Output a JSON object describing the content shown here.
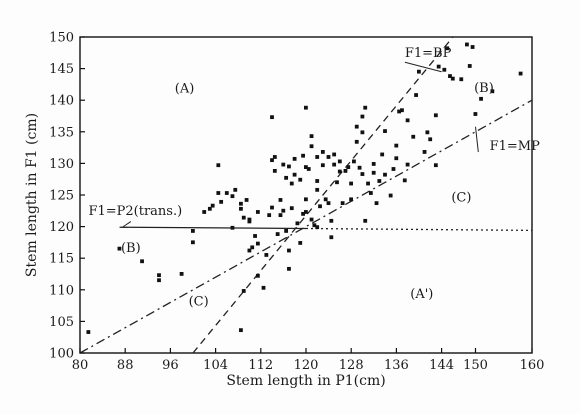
{
  "chart_data": {
    "type": "scatter",
    "title": "",
    "xlabel": "Stem length in P1(cm)",
    "ylabel": "Stem length in F1 (cm)",
    "xlim": [
      80,
      160
    ],
    "ylim": [
      100,
      150
    ],
    "x_ticks": [
      "80",
      "88",
      "96",
      "104",
      "112",
      "120",
      "128",
      "136",
      "144",
      "150",
      "160"
    ],
    "y_ticks": [
      "100",
      "105",
      "110",
      "115",
      "120",
      "125",
      "130",
      "135",
      "140",
      "145",
      "150"
    ],
    "grid": false,
    "legend": "none",
    "reference_lines": [
      {
        "name": "F1=BP",
        "style": "dashed",
        "points": [
          [
            100,
            100
          ],
          [
            146,
            150
          ]
        ]
      },
      {
        "name": "F1=MP",
        "style": "dashdot",
        "points": [
          [
            80,
            100
          ],
          [
            160,
            140
          ]
        ]
      },
      {
        "name": "F1=P2(trans.)",
        "style": "solid",
        "points": [
          [
            87,
            119.9
          ],
          [
            120,
            119.7
          ]
        ]
      },
      {
        "name": "P2 level (dotted)",
        "style": "dotted",
        "points": [
          [
            120,
            119.7
          ],
          [
            160,
            119.4
          ]
        ]
      }
    ],
    "annotations": [
      {
        "text": "(A)",
        "x": 98.5,
        "y": 141.2
      },
      {
        "text": "(B)",
        "x": 151.5,
        "y": 141.3
      },
      {
        "text": "(C)",
        "x": 147.5,
        "y": 124.0
      },
      {
        "text": "(B)",
        "x": 89.0,
        "y": 116.0
      },
      {
        "text": "(C)",
        "x": 101.0,
        "y": 107.5
      },
      {
        "text": "(A')",
        "x": 140.5,
        "y": 108.7
      }
    ],
    "line_labels": [
      {
        "text": "F1=BP",
        "x": 137.5,
        "y": 146.8
      },
      {
        "text": "F1=MP",
        "x": 152.5,
        "y": 132.1
      },
      {
        "text": "F1=P2(trans.)",
        "x": 81.5,
        "y": 121.8
      }
    ],
    "points": [
      [
        81.5,
        103.3
      ],
      [
        87,
        116.5
      ],
      [
        91,
        114.5
      ],
      [
        94,
        111.5
      ],
      [
        94,
        112.3
      ],
      [
        98,
        112.5
      ],
      [
        100,
        117.5
      ],
      [
        100,
        119.3
      ],
      [
        102,
        122.3
      ],
      [
        103,
        122.8
      ],
      [
        103.5,
        123.3
      ],
      [
        104.5,
        125.3
      ],
      [
        104.5,
        129.7
      ],
      [
        105,
        123.9
      ],
      [
        106,
        125.3
      ],
      [
        107,
        119.8
      ],
      [
        107,
        124.8
      ],
      [
        107.5,
        125.8
      ],
      [
        108.5,
        123.6
      ],
      [
        108.5,
        122.8
      ],
      [
        109,
        121.4
      ],
      [
        109.5,
        124.2
      ],
      [
        110,
        121.1
      ],
      [
        110,
        120.8
      ],
      [
        109,
        109.8
      ],
      [
        108.5,
        103.6
      ],
      [
        110,
        116.2
      ],
      [
        110.5,
        116.7
      ],
      [
        111.5,
        117.3
      ],
      [
        111.5,
        122.3
      ],
      [
        111.5,
        112.2
      ],
      [
        112.5,
        110.3
      ],
      [
        113,
        115.5
      ],
      [
        113.5,
        121.8
      ],
      [
        114,
        123.0
      ],
      [
        114,
        130.5
      ],
      [
        114,
        137.3
      ],
      [
        114.5,
        128.8
      ],
      [
        114.5,
        131.0
      ],
      [
        115,
        118.8
      ],
      [
        115.5,
        121.8
      ],
      [
        115.5,
        124.2
      ],
      [
        116,
        122.5
      ],
      [
        116,
        129.8
      ],
      [
        116.5,
        119.3
      ],
      [
        116.5,
        127.7
      ],
      [
        117,
        116.2
      ],
      [
        117,
        129.5
      ],
      [
        117.5,
        126.8
      ],
      [
        117.5,
        122.9
      ],
      [
        118,
        130.7
      ],
      [
        118.5,
        120.5
      ],
      [
        119,
        117.4
      ],
      [
        119,
        127.4
      ],
      [
        119.5,
        122.0
      ],
      [
        119.5,
        131.2
      ],
      [
        120,
        122.3
      ],
      [
        120,
        124.3
      ],
      [
        120,
        129.4
      ],
      [
        120,
        138.8
      ],
      [
        120.5,
        129.1
      ],
      [
        121,
        121.1
      ],
      [
        121,
        132.7
      ],
      [
        121,
        134.3
      ],
      [
        121.5,
        120.2
      ],
      [
        122,
        119.9
      ],
      [
        122,
        127.2
      ],
      [
        122,
        131.0
      ],
      [
        122.5,
        123.2
      ],
      [
        123,
        129.7
      ],
      [
        123,
        131.8
      ],
      [
        123.5,
        124.3
      ],
      [
        124,
        123.7
      ],
      [
        124.5,
        118.3
      ],
      [
        124.5,
        120.9
      ],
      [
        125,
        129.8
      ],
      [
        125,
        131.4
      ],
      [
        125.5,
        127.0
      ],
      [
        126,
        128.7
      ],
      [
        126.5,
        123.7
      ],
      [
        127,
        128.8
      ],
      [
        127.5,
        129.4
      ],
      [
        128,
        124.3
      ],
      [
        128,
        126.8
      ],
      [
        128.5,
        130.3
      ],
      [
        129,
        133.4
      ],
      [
        129,
        135.8
      ],
      [
        129.5,
        129.3
      ],
      [
        130,
        128.3
      ],
      [
        130,
        134.9
      ],
      [
        130.5,
        120.9
      ],
      [
        130.5,
        138.8
      ],
      [
        131,
        126.8
      ],
      [
        131.5,
        125.3
      ],
      [
        132,
        129.9
      ],
      [
        132.5,
        123.7
      ],
      [
        133,
        127.2
      ],
      [
        133.5,
        131.4
      ],
      [
        134,
        128.2
      ],
      [
        134,
        135.1
      ],
      [
        135,
        124.9
      ],
      [
        135.5,
        129.1
      ],
      [
        136,
        132.8
      ],
      [
        136,
        130.8
      ],
      [
        136.5,
        138.2
      ],
      [
        137,
        138.4
      ],
      [
        137.5,
        127.3
      ],
      [
        138,
        129.8
      ],
      [
        138,
        136.8
      ],
      [
        139,
        134.2
      ],
      [
        139.5,
        140.8
      ],
      [
        140,
        144.5
      ],
      [
        141,
        131.8
      ],
      [
        141.5,
        134.9
      ],
      [
        142,
        133.8
      ],
      [
        143,
        129.7
      ],
      [
        143,
        137.6
      ],
      [
        143.5,
        145.3
      ],
      [
        144.5,
        144.8
      ],
      [
        145,
        148.2
      ],
      [
        145.5,
        143.8
      ],
      [
        146,
        143.4
      ],
      [
        147.5,
        143.3
      ],
      [
        148.5,
        148.8
      ],
      [
        149,
        145.4
      ],
      [
        149.5,
        148.4
      ],
      [
        150,
        137.8
      ],
      [
        151,
        140.2
      ],
      [
        153,
        141.4
      ],
      [
        158,
        144.2
      ],
      [
        117,
        113.3
      ],
      [
        111,
        118.5
      ],
      [
        124,
        131.0
      ],
      [
        118,
        128.2
      ],
      [
        126,
        130.3
      ],
      [
        122,
        125.8
      ],
      [
        132,
        128.5
      ],
      [
        130,
        137.4
      ]
    ]
  }
}
